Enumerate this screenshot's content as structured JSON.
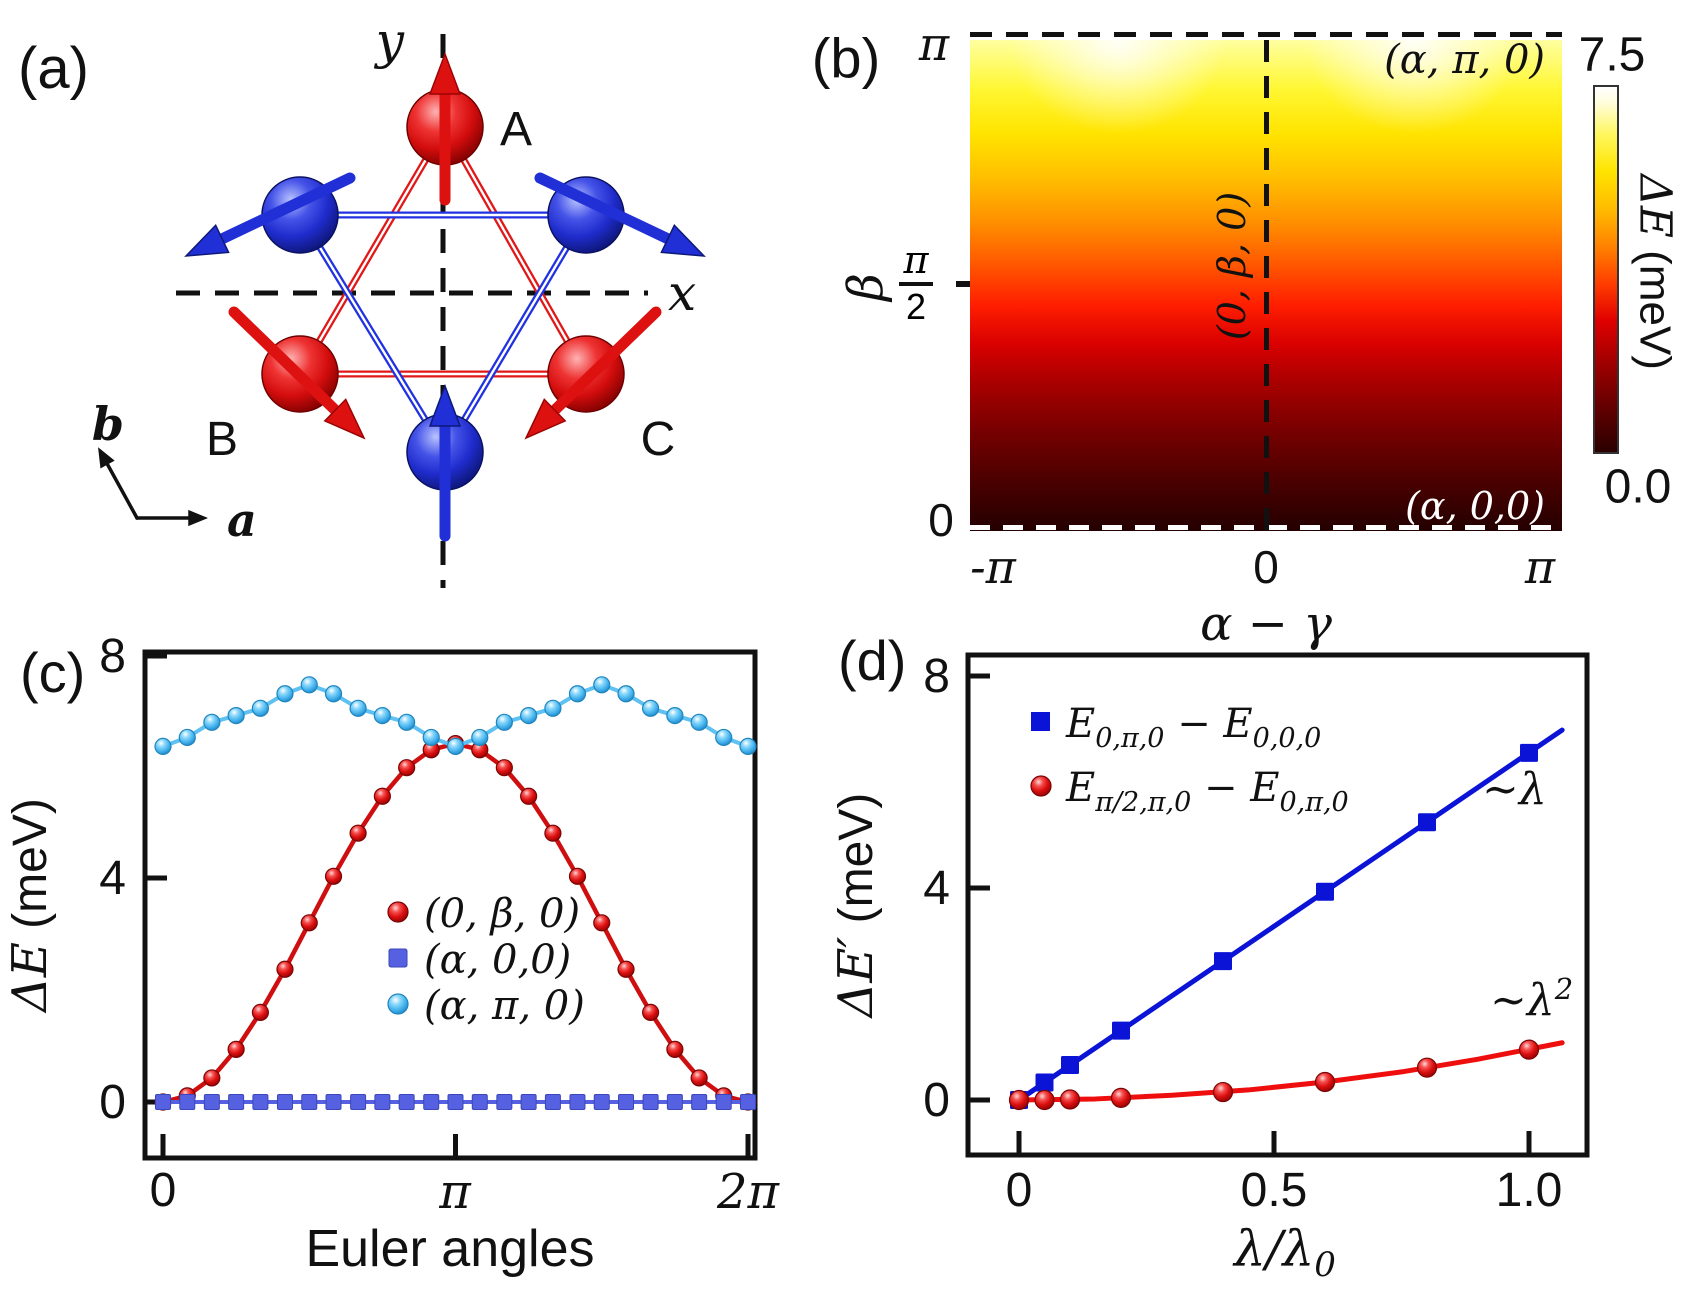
{
  "panel_a": {
    "label": "(a)",
    "y_axis_label": "y",
    "x_axis_label": "x",
    "site_a": "A",
    "site_b": "B",
    "site_c": "C",
    "vec_a": "a",
    "vec_b": "b",
    "red": "#de1111",
    "blue": "#2130d6"
  },
  "panel_b": {
    "label": "(b)",
    "y_label": "β",
    "y_ticks": {
      "top": "π",
      "mid_num": "π",
      "mid_den": "2",
      "bottom": "0"
    },
    "x_ticks": [
      "-π",
      "0",
      "π"
    ],
    "x_label": "α − γ",
    "ann_top_right": "(α, π, 0)",
    "ann_center": "(0, β, 0)",
    "ann_bottom_right": "(α, 0,0)",
    "colorbar": {
      "max": "7.5",
      "min": "0.0",
      "label_main": "ΔE",
      "label_unit": " (meV)"
    }
  },
  "panel_c": {
    "label": "(c)",
    "ylabel_main": "ΔE",
    "ylabel_unit": " (meV)",
    "xlabel": "Euler angles",
    "yticks": [
      "0",
      "4",
      "8"
    ],
    "xticks": [
      "0",
      "π",
      "2π"
    ]
  },
  "panel_d": {
    "label": "(d)",
    "ylabel_main": "ΔE′",
    "ylabel_unit": " (meV)",
    "xlabel_main": "λ/λ",
    "xlabel_sub": "0",
    "yticks": [
      "0",
      "4",
      "8"
    ],
    "xticks": [
      "0",
      "0.5",
      "1.0"
    ],
    "legend": [
      {
        "main1": "E",
        "sub1": "0,π,0",
        "main2": " − E",
        "sub2": "0,0,0"
      },
      {
        "main1": "E",
        "sub1": "π/2,π,0",
        "main2": " − E",
        "sub2": "0,π,0"
      }
    ],
    "ann_blue": {
      "base": "~λ",
      "sup": ""
    },
    "ann_red": {
      "base": "~λ",
      "sup": "2"
    }
  },
  "chart_data": [
    {
      "id": "c",
      "type": "line",
      "title": "",
      "xlabel": "Euler angles",
      "ylabel": "ΔE (meV)",
      "x_unit": "multiples of π",
      "xlim": [
        0,
        2
      ],
      "ylim": [
        0,
        8
      ],
      "xtick_labels": [
        "0",
        "π",
        "2π"
      ],
      "ytick_values": [
        0,
        4,
        8
      ],
      "grid": false,
      "legend_position": "center",
      "series": [
        {
          "name": "(0, β, 0)",
          "marker": "sphere-red",
          "color": "#cf0f0f",
          "x": [
            0,
            0.083,
            0.167,
            0.25,
            0.333,
            0.417,
            0.5,
            0.583,
            0.667,
            0.75,
            0.833,
            0.917,
            1,
            1.083,
            1.167,
            1.25,
            1.333,
            1.417,
            1.5,
            1.583,
            1.667,
            1.75,
            1.833,
            1.917,
            2
          ],
          "y": [
            0,
            0.11,
            0.43,
            0.94,
            1.6,
            2.37,
            3.2,
            4.03,
            4.8,
            5.46,
            5.97,
            6.29,
            6.4,
            6.29,
            5.97,
            5.46,
            4.8,
            4.03,
            3.2,
            2.37,
            1.6,
            0.94,
            0.43,
            0.11,
            0
          ]
        },
        {
          "name": "(α, 0,0)",
          "marker": "square-blue",
          "color": "#5661e2",
          "x": [
            0,
            0.083,
            0.167,
            0.25,
            0.333,
            0.417,
            0.5,
            0.583,
            0.667,
            0.75,
            0.833,
            0.917,
            1,
            1.083,
            1.167,
            1.25,
            1.333,
            1.417,
            1.5,
            1.583,
            1.667,
            1.75,
            1.833,
            1.917,
            2
          ],
          "y": [
            0,
            0,
            0,
            0,
            0,
            0,
            0,
            0,
            0,
            0,
            0,
            0,
            0,
            0,
            0,
            0,
            0,
            0,
            0,
            0,
            0,
            0,
            0,
            0,
            0
          ]
        },
        {
          "name": "(α, π, 0)",
          "marker": "sphere-cyan",
          "color": "#5ec1f2",
          "x": [
            0,
            0.083,
            0.167,
            0.25,
            0.333,
            0.417,
            0.5,
            0.583,
            0.667,
            0.75,
            0.833,
            0.917,
            1,
            1.083,
            1.167,
            1.25,
            1.333,
            1.417,
            1.5,
            1.583,
            1.667,
            1.75,
            1.833,
            1.917,
            2
          ],
          "y": [
            6.35,
            6.51,
            6.78,
            6.9,
            7.03,
            7.29,
            7.45,
            7.29,
            7.03,
            6.9,
            6.78,
            6.51,
            6.35,
            6.51,
            6.78,
            6.9,
            7.03,
            7.29,
            7.45,
            7.29,
            7.03,
            6.9,
            6.78,
            6.51,
            6.35
          ]
        }
      ]
    },
    {
      "id": "d",
      "type": "scatter",
      "title": "",
      "xlabel": "λ/λ0",
      "ylabel": "ΔE′ (meV)",
      "xlim": [
        0,
        1.1
      ],
      "ylim": [
        0,
        8
      ],
      "xtick_values": [
        0,
        0.5,
        1.0
      ],
      "ytick_values": [
        0,
        4,
        8
      ],
      "grid": false,
      "legend_position": "upper-left",
      "series": [
        {
          "name": "E(0,π,0) − E(0,0,0)",
          "fit": "~λ",
          "marker": "square-blue-d",
          "color": "#0b14d6",
          "x": [
            0,
            0.05,
            0.1,
            0.2,
            0.4,
            0.6,
            0.8,
            1.0
          ],
          "y": [
            0,
            0.33,
            0.66,
            1.31,
            2.62,
            3.93,
            5.24,
            6.55
          ],
          "line": {
            "x": [
              0,
              1.065
            ],
            "y": [
              0,
              6.98
            ]
          }
        },
        {
          "name": "E(π/2,π,0) − E(0,π,0)",
          "fit": "~λ²",
          "marker": "sphere-red-d",
          "color": "#ee0e0e",
          "x": [
            0,
            0.05,
            0.1,
            0.2,
            0.4,
            0.6,
            0.8,
            1.0
          ],
          "y": [
            0,
            0,
            0.01,
            0.04,
            0.15,
            0.34,
            0.61,
            0.95
          ],
          "line": {
            "x": [
              0,
              0.15,
              0.3,
              0.45,
              0.6,
              0.75,
              0.9,
              1.065
            ],
            "y": [
              0,
              0.02,
              0.09,
              0.19,
              0.34,
              0.53,
              0.77,
              1.08
            ]
          }
        }
      ]
    },
    {
      "id": "b",
      "type": "heatmap",
      "xlabel": "α − γ",
      "ylabel": "β",
      "xlim_labels": [
        "-π",
        "π"
      ],
      "ylim_labels": [
        "0",
        "π"
      ],
      "value_label": "ΔE (meV)",
      "vmin": 0.0,
      "vmax": 7.5,
      "description": "ΔE rises from 0 at β=0 (dark maroon) to 6.4–7.45 meV at β=π (bright yellow-white); brightest near α−γ=±π/2 at β=π; dashed guides at β=0, β=π and α−γ=0",
      "colormap_stops": [
        "#240000",
        "#4a0000",
        "#750000",
        "#a80000",
        "#d80000",
        "#ff1e00",
        "#ff5c00",
        "#ff9000",
        "#ffbf00",
        "#ffe400",
        "#fff733",
        "#ffffa0"
      ]
    }
  ]
}
